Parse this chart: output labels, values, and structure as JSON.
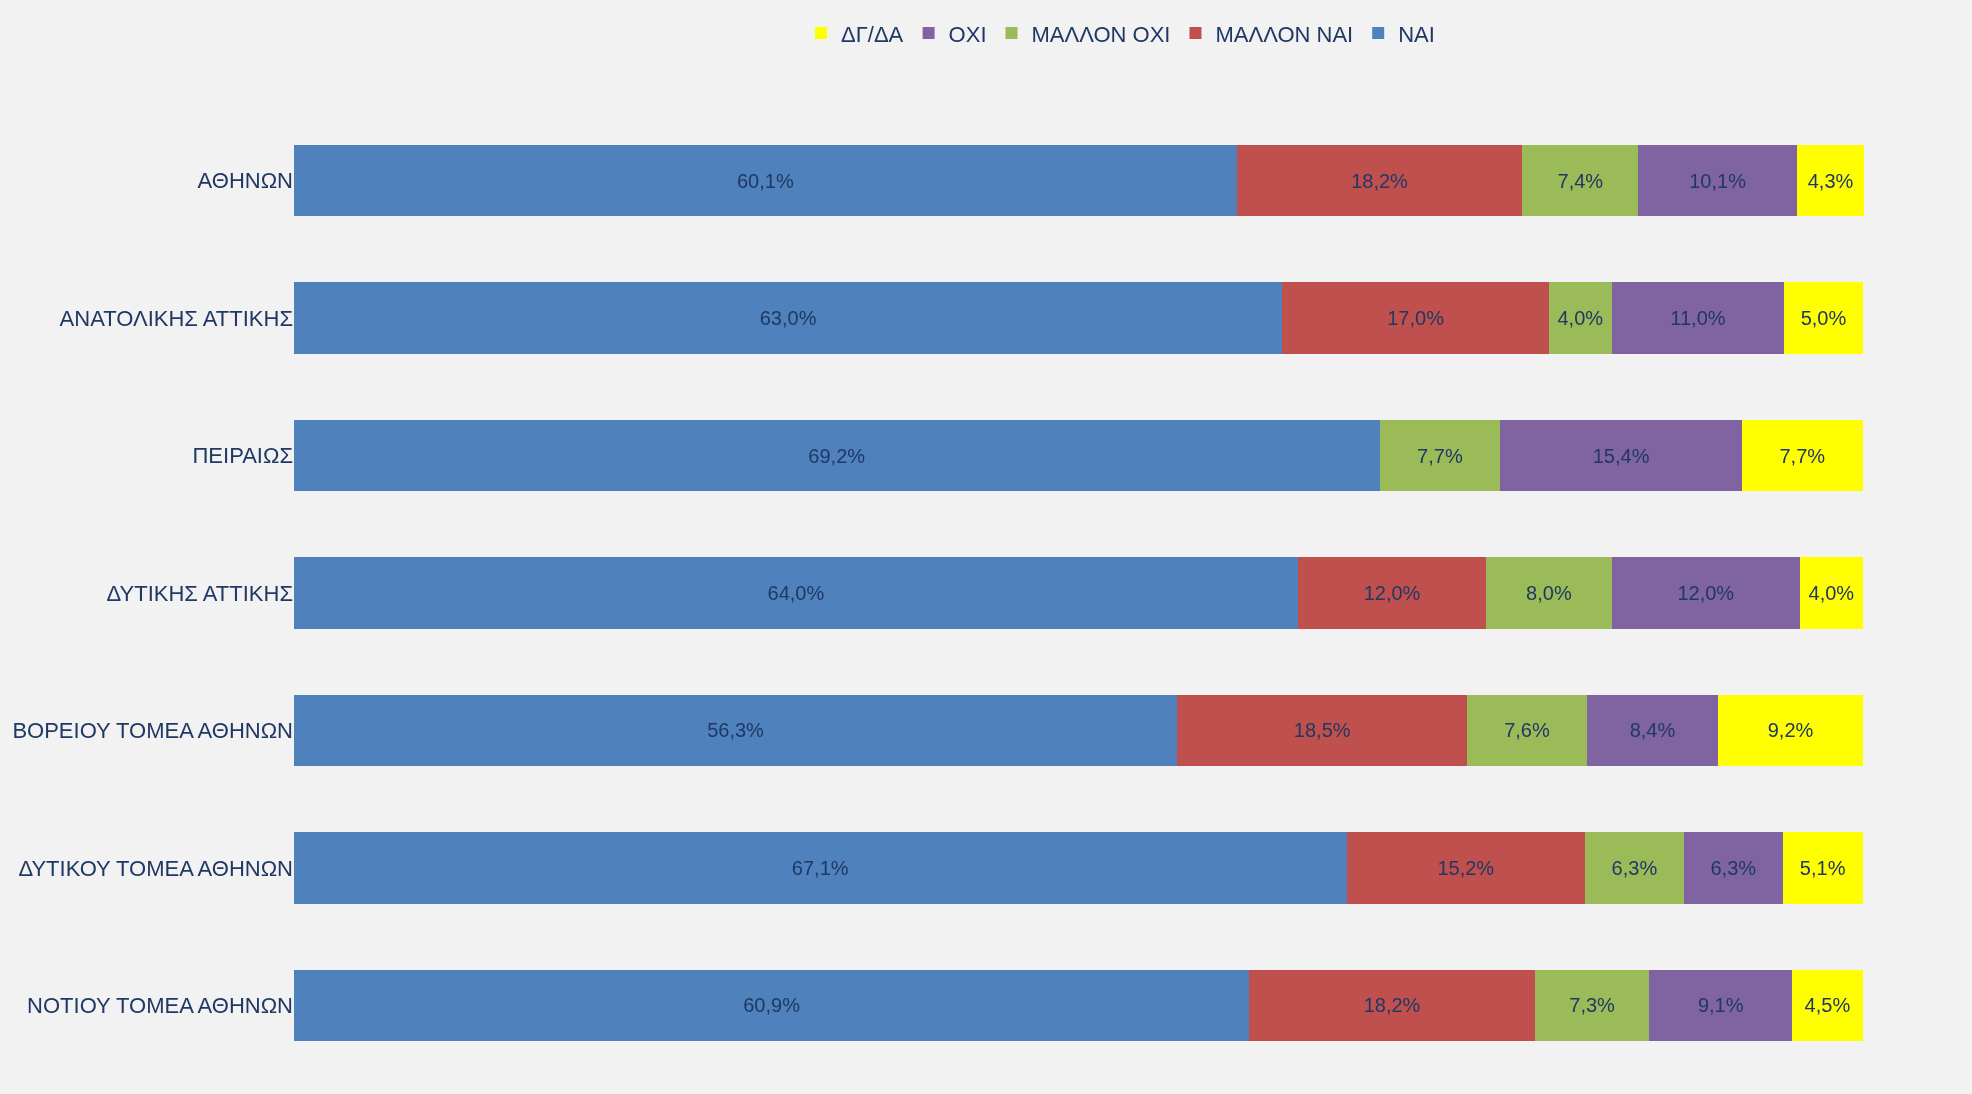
{
  "chart_data": {
    "type": "bar",
    "orientation": "horizontal",
    "stacked": true,
    "legend": "top",
    "grid": false,
    "tick_labels": "y",
    "categories": [
      "ΑΘΗΝΩΝ",
      "ΑΝΑΤΟΛΙΚΗΣ ΑΤΤΙΚΗΣ",
      "ΠΕΙΡΑΙΩΣ",
      "ΔΥΤΙΚΗΣ ΑΤΤΙΚΗΣ",
      "ΒΟΡΕΙΟΥ ΤΟΜΕΑ ΑΘΗΝΩΝ",
      "ΔΥΤΙΚΟΥ ΤΟΜΕΑ ΑΘΗΝΩΝ",
      "ΝΟΤΙΟΥ ΤΟΜΕΑ ΑΘΗΝΩΝ"
    ],
    "series": [
      {
        "name": "ΝΑΙ",
        "color": "#4f81bd",
        "values": [
          60.1,
          63.0,
          69.2,
          64.0,
          56.3,
          67.1,
          60.9
        ],
        "value_labels": [
          "60,1%",
          "63,0%",
          "69,2%",
          "64,0%",
          "56,3%",
          "67,1%",
          "60,9%"
        ]
      },
      {
        "name": "ΜΑΛΛΟΝ ΝΑΙ",
        "color": "#c0504d",
        "values": [
          18.2,
          17.0,
          null,
          12.0,
          18.5,
          15.2,
          18.2
        ],
        "value_labels": [
          "18,2%",
          "17,0%",
          null,
          "12,0%",
          "18,5%",
          "15,2%",
          "18,2%"
        ]
      },
      {
        "name": "ΜΑΛΛΟΝ ΟΧΙ",
        "color": "#9bbb59",
        "values": [
          7.4,
          4.0,
          7.7,
          8.0,
          7.6,
          6.3,
          7.3
        ],
        "value_labels": [
          "7,4%",
          "4,0%",
          "7,7%",
          "8,0%",
          "7,6%",
          "6,3%",
          "7,3%"
        ]
      },
      {
        "name": "ΟΧΙ",
        "color": "#8064a2",
        "values": [
          10.1,
          11.0,
          15.4,
          12.0,
          8.4,
          6.3,
          9.1
        ],
        "value_labels": [
          "10,1%",
          "11,0%",
          "15,4%",
          "12,0%",
          "8,4%",
          "6,3%",
          "9,1%"
        ]
      },
      {
        "name": "ΔΓ/ΔΑ",
        "color": "#ffff00",
        "values": [
          4.3,
          5.0,
          7.7,
          4.0,
          9.2,
          5.1,
          4.5
        ],
        "value_labels": [
          "4,3%",
          "5,0%",
          "7,7%",
          "4,0%",
          "9,2%",
          "5,1%",
          "4,5%"
        ]
      }
    ]
  }
}
